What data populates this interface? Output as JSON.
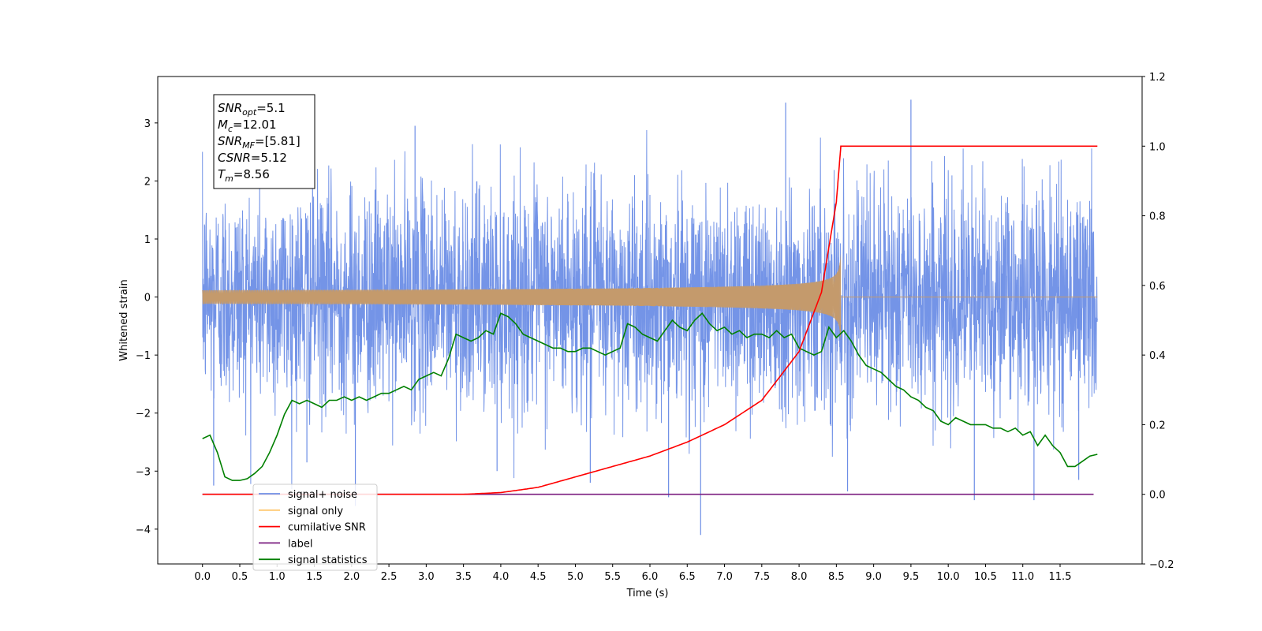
{
  "chart_data": {
    "type": "line",
    "xlabel": "Time (s)",
    "ylabel": "Whitened strain",
    "xlim": [
      -0.6,
      12.6
    ],
    "ylim": [
      -4.6,
      3.8
    ],
    "y2lim": [
      -0.2,
      1.2
    ],
    "x_ticks": [
      "0.0",
      "0.5",
      "1.0",
      "1.5",
      "2.0",
      "2.5",
      "3.0",
      "3.5",
      "4.0",
      "4.5",
      "5.0",
      "5.5",
      "6.0",
      "6.5",
      "7.0",
      "7.5",
      "8.0",
      "8.5",
      "9.0",
      "9.5",
      "10.0",
      "10.5",
      "11.0",
      "11.5"
    ],
    "y_ticks": [
      "−4",
      "−3",
      "−2",
      "−1",
      "0",
      "1",
      "2",
      "3"
    ],
    "y2_ticks": [
      "−0.2",
      "0.0",
      "0.2",
      "0.4",
      "0.6",
      "0.8",
      "1.0",
      "1.2"
    ],
    "legend_position": "lower-left",
    "colors": {
      "signal_noise": "#6d8ee6",
      "signal_only": "#ffb347",
      "signal_visible": "#c49a6c",
      "cumulative_snr": "#ff0000",
      "label": "#7b1f80",
      "signal_statistics": "#008000"
    },
    "series": [
      {
        "name": "signal+ noise",
        "axis": "left",
        "x_range": [
          0.0,
          12.0
        ],
        "note_visible": "dense noise, approximately between -2.3 and 2.3 with spikes to -4.1 and 3.4"
      },
      {
        "name": "signal only",
        "axis": "left",
        "x_range": [
          0.0,
          8.56
        ],
        "peak_amplitude": 0.75,
        "merger_time": 8.56
      },
      {
        "name": "cumilative SNR",
        "axis": "right",
        "x": [
          0.0,
          3.0,
          3.5,
          4.0,
          4.5,
          5.0,
          5.5,
          6.0,
          6.5,
          7.0,
          7.5,
          8.0,
          8.3,
          8.5,
          8.56,
          8.6,
          12.0
        ],
        "y": [
          0.0,
          0.0,
          0.0,
          0.005,
          0.02,
          0.05,
          0.08,
          0.11,
          0.15,
          0.2,
          0.27,
          0.41,
          0.58,
          0.84,
          1.0,
          1.0,
          1.0
        ]
      },
      {
        "name": "label",
        "axis": "right",
        "x": [
          0.0,
          11.95
        ],
        "y": [
          0.0,
          0.0
        ]
      },
      {
        "name": "signal statistics",
        "axis": "right",
        "x": [
          0.0,
          0.1,
          0.2,
          0.3,
          0.4,
          0.5,
          0.6,
          0.7,
          0.8,
          0.9,
          1.0,
          1.1,
          1.2,
          1.3,
          1.4,
          1.5,
          1.6,
          1.7,
          1.8,
          1.9,
          2.0,
          2.1,
          2.2,
          2.3,
          2.4,
          2.5,
          2.6,
          2.7,
          2.8,
          2.9,
          3.0,
          3.1,
          3.2,
          3.3,
          3.4,
          3.5,
          3.6,
          3.7,
          3.8,
          3.9,
          4.0,
          4.1,
          4.2,
          4.3,
          4.4,
          4.5,
          4.6,
          4.7,
          4.8,
          4.9,
          5.0,
          5.1,
          5.2,
          5.3,
          5.4,
          5.5,
          5.6,
          5.7,
          5.8,
          5.9,
          6.0,
          6.1,
          6.2,
          6.3,
          6.4,
          6.5,
          6.6,
          6.7,
          6.8,
          6.9,
          7.0,
          7.1,
          7.2,
          7.3,
          7.4,
          7.5,
          7.6,
          7.7,
          7.8,
          7.9,
          8.0,
          8.1,
          8.2,
          8.3,
          8.4,
          8.5,
          8.6,
          8.7,
          8.8,
          8.9,
          9.0,
          9.1,
          9.2,
          9.3,
          9.4,
          9.5,
          9.6,
          9.7,
          9.8,
          9.9,
          10.0,
          10.1,
          10.2,
          10.3,
          10.4,
          10.5,
          10.6,
          10.7,
          10.8,
          10.9,
          11.0,
          11.1,
          11.2,
          11.3,
          11.4,
          11.5,
          11.6,
          11.7,
          11.8,
          11.9,
          12.0
        ],
        "y": [
          0.16,
          0.17,
          0.12,
          0.05,
          0.04,
          0.04,
          0.045,
          0.06,
          0.08,
          0.12,
          0.17,
          0.23,
          0.27,
          0.26,
          0.27,
          0.26,
          0.25,
          0.27,
          0.27,
          0.28,
          0.27,
          0.28,
          0.27,
          0.28,
          0.29,
          0.29,
          0.3,
          0.31,
          0.3,
          0.33,
          0.34,
          0.35,
          0.34,
          0.39,
          0.46,
          0.45,
          0.44,
          0.45,
          0.47,
          0.46,
          0.52,
          0.51,
          0.49,
          0.46,
          0.45,
          0.44,
          0.43,
          0.42,
          0.42,
          0.41,
          0.41,
          0.42,
          0.42,
          0.41,
          0.4,
          0.41,
          0.42,
          0.49,
          0.48,
          0.46,
          0.45,
          0.44,
          0.47,
          0.5,
          0.48,
          0.47,
          0.5,
          0.52,
          0.49,
          0.47,
          0.48,
          0.46,
          0.47,
          0.45,
          0.46,
          0.46,
          0.45,
          0.47,
          0.45,
          0.46,
          0.42,
          0.41,
          0.4,
          0.41,
          0.48,
          0.45,
          0.47,
          0.44,
          0.4,
          0.37,
          0.36,
          0.35,
          0.33,
          0.31,
          0.3,
          0.28,
          0.27,
          0.25,
          0.24,
          0.21,
          0.2,
          0.22,
          0.21,
          0.2,
          0.2,
          0.2,
          0.19,
          0.19,
          0.18,
          0.19,
          0.17,
          0.18,
          0.14,
          0.17,
          0.14,
          0.12,
          0.08,
          0.08,
          0.095,
          0.11,
          0.115
        ]
      }
    ],
    "annotation": [
      {
        "sym": "SNR",
        "sub": "opt",
        "value": "=5.1"
      },
      {
        "sym": "M",
        "sub": "c",
        "value": "=12.01"
      },
      {
        "sym": "SNR",
        "sub": "MF",
        "value": "=[5.81]"
      },
      {
        "sym": "CSNR",
        "sub": "",
        "value": "=5.12"
      },
      {
        "sym": "T",
        "sub": "m",
        "value": "=8.56"
      }
    ],
    "legend": [
      {
        "label": "signal+ noise",
        "color": "#6d8ee6"
      },
      {
        "label": "signal only",
        "color": "#ffc870"
      },
      {
        "label": "cumilative SNR",
        "color": "#ff0000"
      },
      {
        "label": "label",
        "color": "#7b1f80"
      },
      {
        "label": "signal statistics",
        "color": "#008000"
      }
    ]
  }
}
